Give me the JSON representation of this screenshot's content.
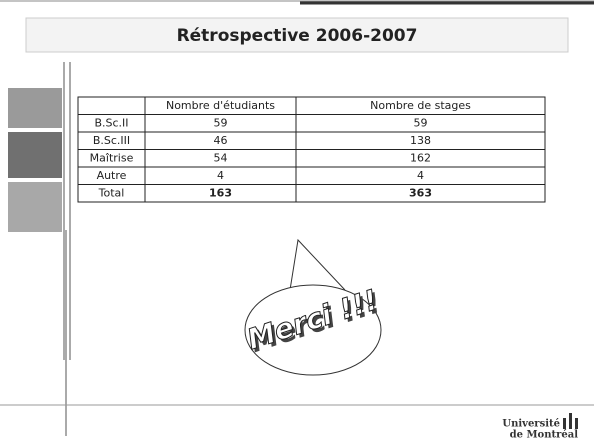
{
  "title": "Rétrospective 2006-2007",
  "table": {
    "header": [
      "Nombre d'étudiants",
      "Nombre de stages"
    ],
    "rows": [
      [
        "B.Sc.II",
        59,
        59
      ],
      [
        "B.Sc.III",
        46,
        138
      ],
      [
        "Maîtrise",
        54,
        162
      ],
      [
        "Autre",
        4,
        4
      ],
      [
        "Total",
        163,
        363
      ]
    ]
  },
  "bubble": "Merci !!!",
  "logo": [
    "Université",
    "de Montréal"
  ]
}
